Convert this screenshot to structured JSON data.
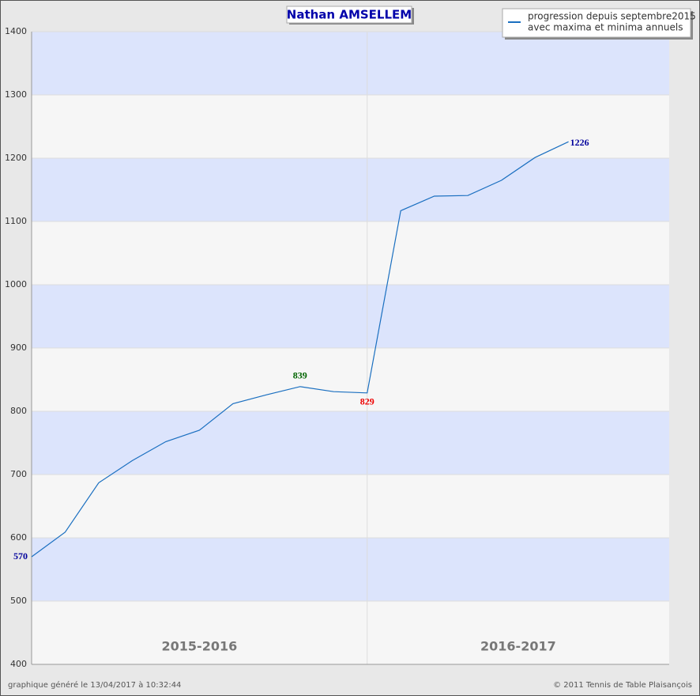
{
  "chart_data": {
    "type": "line",
    "title": "Nathan AMSELLEM",
    "x": [
      0,
      1,
      2,
      3,
      4,
      5,
      6,
      7,
      8,
      9,
      10,
      11,
      12,
      13,
      14,
      15,
      16
    ],
    "xlim": [
      0,
      19
    ],
    "series": [
      {
        "name": "progression depuis septembre2015",
        "color": "#1a6fc0",
        "values": [
          570,
          609,
          687,
          722,
          752,
          770,
          812,
          826,
          839,
          831,
          829,
          1117,
          1140,
          1141,
          1165,
          1201,
          1226
        ]
      }
    ],
    "legend_note": "avec maxima et minima annuels",
    "highlights": [
      {
        "index": 0,
        "color": "#00009c"
      },
      {
        "index": 8,
        "color": "#006400"
      },
      {
        "index": 10,
        "color": "#ee0000"
      },
      {
        "index": 16,
        "color": "#00009c"
      }
    ],
    "ylim": [
      400,
      1400
    ],
    "yticks": [
      400,
      500,
      600,
      700,
      800,
      900,
      1000,
      1100,
      1200,
      1300,
      1400
    ],
    "band_colors": [
      "#dce4fc",
      "#f6f6f6"
    ],
    "season_divider": 10,
    "seasons": [
      "2015-2016",
      "2016-2017"
    ],
    "footer_left": "graphique généré le 13/04/2017 à 10:32:44",
    "footer_right": "© 2011 Tennis de Table Plaisançois"
  }
}
